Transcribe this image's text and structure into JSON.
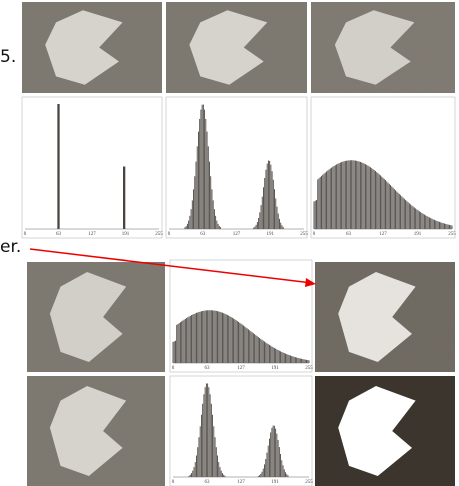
{
  "fragments": {
    "line_1": "5.",
    "line_2": "er."
  },
  "histogram_ticks": [
    "0",
    "63",
    "127",
    "191",
    "255"
  ]
}
